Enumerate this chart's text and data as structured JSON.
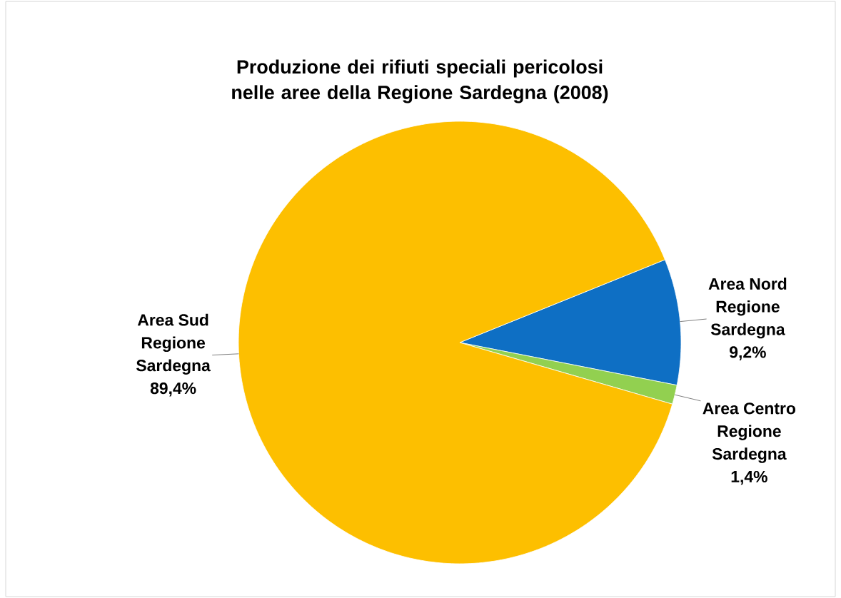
{
  "chart_data": {
    "type": "pie",
    "title": "Produzione dei rifiuti speciali pericolosi nelle aree della Regione Sardegna (2008)",
    "categories": [
      "Area Nord Regione Sardegna",
      "Area Centro Regione Sardegna",
      "Area Sud Regione Sardegna"
    ],
    "values": [
      9.2,
      1.4,
      89.4
    ],
    "colors": [
      "#0e6fc4",
      "#92d050",
      "#fdbf00"
    ],
    "value_labels": [
      "9,2%",
      "1,4%",
      "89,4%"
    ]
  }
}
